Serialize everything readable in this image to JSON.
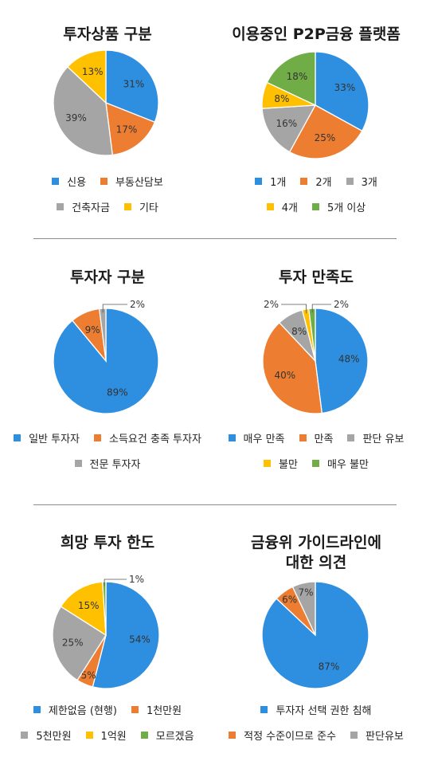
{
  "colors": {
    "blue": "#2e8ee0",
    "orange": "#ed7d31",
    "gray": "#a5a5a5",
    "yellow": "#ffc000",
    "green": "#70ad47"
  },
  "chart_data": [
    {
      "type": "pie",
      "title": "투자상품 구분",
      "legend_rows": [
        [
          0,
          1
        ],
        [
          2,
          3
        ]
      ],
      "slices": [
        {
          "label": "신용",
          "value": 31,
          "display": "31%",
          "color": "#2e8ee0"
        },
        {
          "label": "부동산담보",
          "value": 17,
          "display": "17%",
          "color": "#ed7d31"
        },
        {
          "label": "건축자금",
          "value": 39,
          "display": "39%",
          "color": "#a5a5a5"
        },
        {
          "label": "기타",
          "value": 13,
          "display": "13%",
          "color": "#ffc000"
        }
      ]
    },
    {
      "type": "pie",
      "title": "이용중인 P2P금융 플랫폼",
      "legend_rows": [
        [
          0,
          1,
          2
        ],
        [
          3,
          4
        ]
      ],
      "slices": [
        {
          "label": "1개",
          "value": 33,
          "display": "33%",
          "color": "#2e8ee0"
        },
        {
          "label": "2개",
          "value": 25,
          "display": "25%",
          "color": "#ed7d31"
        },
        {
          "label": "3개",
          "value": 16,
          "display": "16%",
          "color": "#a5a5a5"
        },
        {
          "label": "4개",
          "value": 8,
          "display": "8%",
          "color": "#ffc000"
        },
        {
          "label": "5개 이상",
          "value": 18,
          "display": "18%",
          "color": "#70ad47"
        }
      ]
    },
    {
      "type": "pie",
      "title": "투자자 구분",
      "legend_rows": [
        [
          0,
          1
        ],
        [
          2
        ]
      ],
      "slices": [
        {
          "label": "일반 투자자",
          "value": 89,
          "display": "89%",
          "color": "#2e8ee0"
        },
        {
          "label": "소득요건 충족 투자자",
          "value": 9,
          "display": "9%",
          "color": "#ed7d31"
        },
        {
          "label": "전문 투자자",
          "value": 2,
          "display": "2%",
          "color": "#a5a5a5"
        }
      ]
    },
    {
      "type": "pie",
      "title": "투자 만족도",
      "legend_rows": [
        [
          0,
          1,
          2
        ],
        [
          3,
          4
        ]
      ],
      "slices": [
        {
          "label": "매우 만족",
          "value": 48,
          "display": "48%",
          "color": "#2e8ee0"
        },
        {
          "label": "만족",
          "value": 40,
          "display": "40%",
          "color": "#ed7d31"
        },
        {
          "label": "판단 유보",
          "value": 8,
          "display": "8%",
          "color": "#a5a5a5"
        },
        {
          "label": "불만",
          "value": 2,
          "display": "2%",
          "color": "#ffc000"
        },
        {
          "label": "매우 불만",
          "value": 2,
          "display": "2%",
          "color": "#70ad47"
        }
      ]
    },
    {
      "type": "pie",
      "title": "희망 투자 한도",
      "legend_rows": [
        [
          0,
          1
        ],
        [
          2,
          3,
          4
        ]
      ],
      "slices": [
        {
          "label": "제한없음 (현행)",
          "value": 54,
          "display": "54%",
          "color": "#2e8ee0"
        },
        {
          "label": "1천만원",
          "value": 5,
          "display": "5%",
          "color": "#ed7d31"
        },
        {
          "label": "5천만원",
          "value": 25,
          "display": "25%",
          "color": "#a5a5a5"
        },
        {
          "label": "1억원",
          "value": 15,
          "display": "15%",
          "color": "#ffc000"
        },
        {
          "label": "모르겠음",
          "value": 1,
          "display": "1%",
          "color": "#70ad47"
        }
      ]
    },
    {
      "type": "pie",
      "title": "금융위 가이드라인에\n대한 의견",
      "legend_rows": [
        [
          0
        ],
        [
          1,
          2
        ]
      ],
      "slices": [
        {
          "label": "투자자 선택 권한 침해",
          "value": 87,
          "display": "87%",
          "color": "#2e8ee0"
        },
        {
          "label": "적정 수준이므로 준수",
          "value": 6,
          "display": "6%",
          "color": "#ed7d31"
        },
        {
          "label": "판단유보",
          "value": 7,
          "display": "7%",
          "color": "#a5a5a5"
        }
      ]
    }
  ]
}
